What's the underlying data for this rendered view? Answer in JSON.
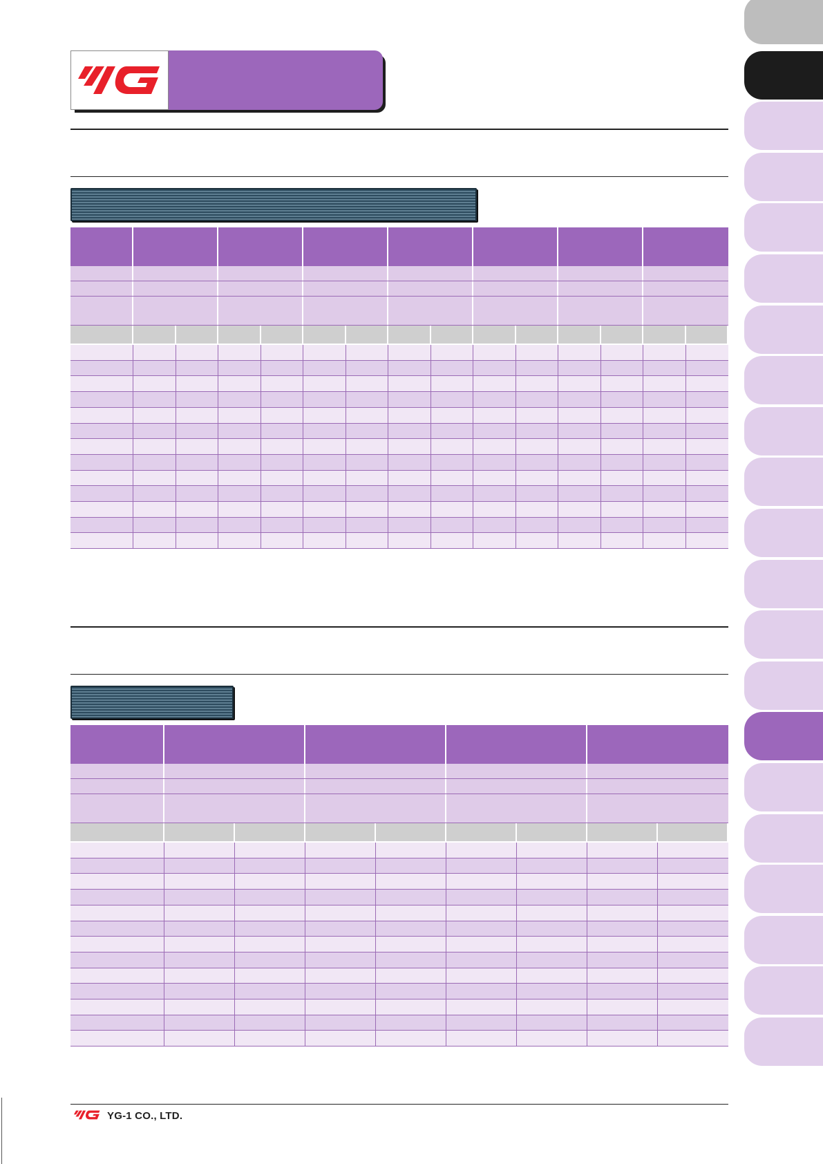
{
  "brand": {
    "logo_text": "YG",
    "company": "YG-1 CO., LTD.",
    "colors": {
      "accent": "#9c67bb",
      "logo_red": "#e8202a",
      "section_bar": "#2d4b5e"
    }
  },
  "table1": {
    "group_columns": 7,
    "sub_columns_per_group": 2,
    "data_rows": 13
  },
  "table2": {
    "group_columns": 4,
    "sub_columns_per_group": 2,
    "data_rows": 13
  },
  "side_tabs": {
    "count": 21,
    "active_index": 14,
    "icon": "page-index-tab"
  }
}
